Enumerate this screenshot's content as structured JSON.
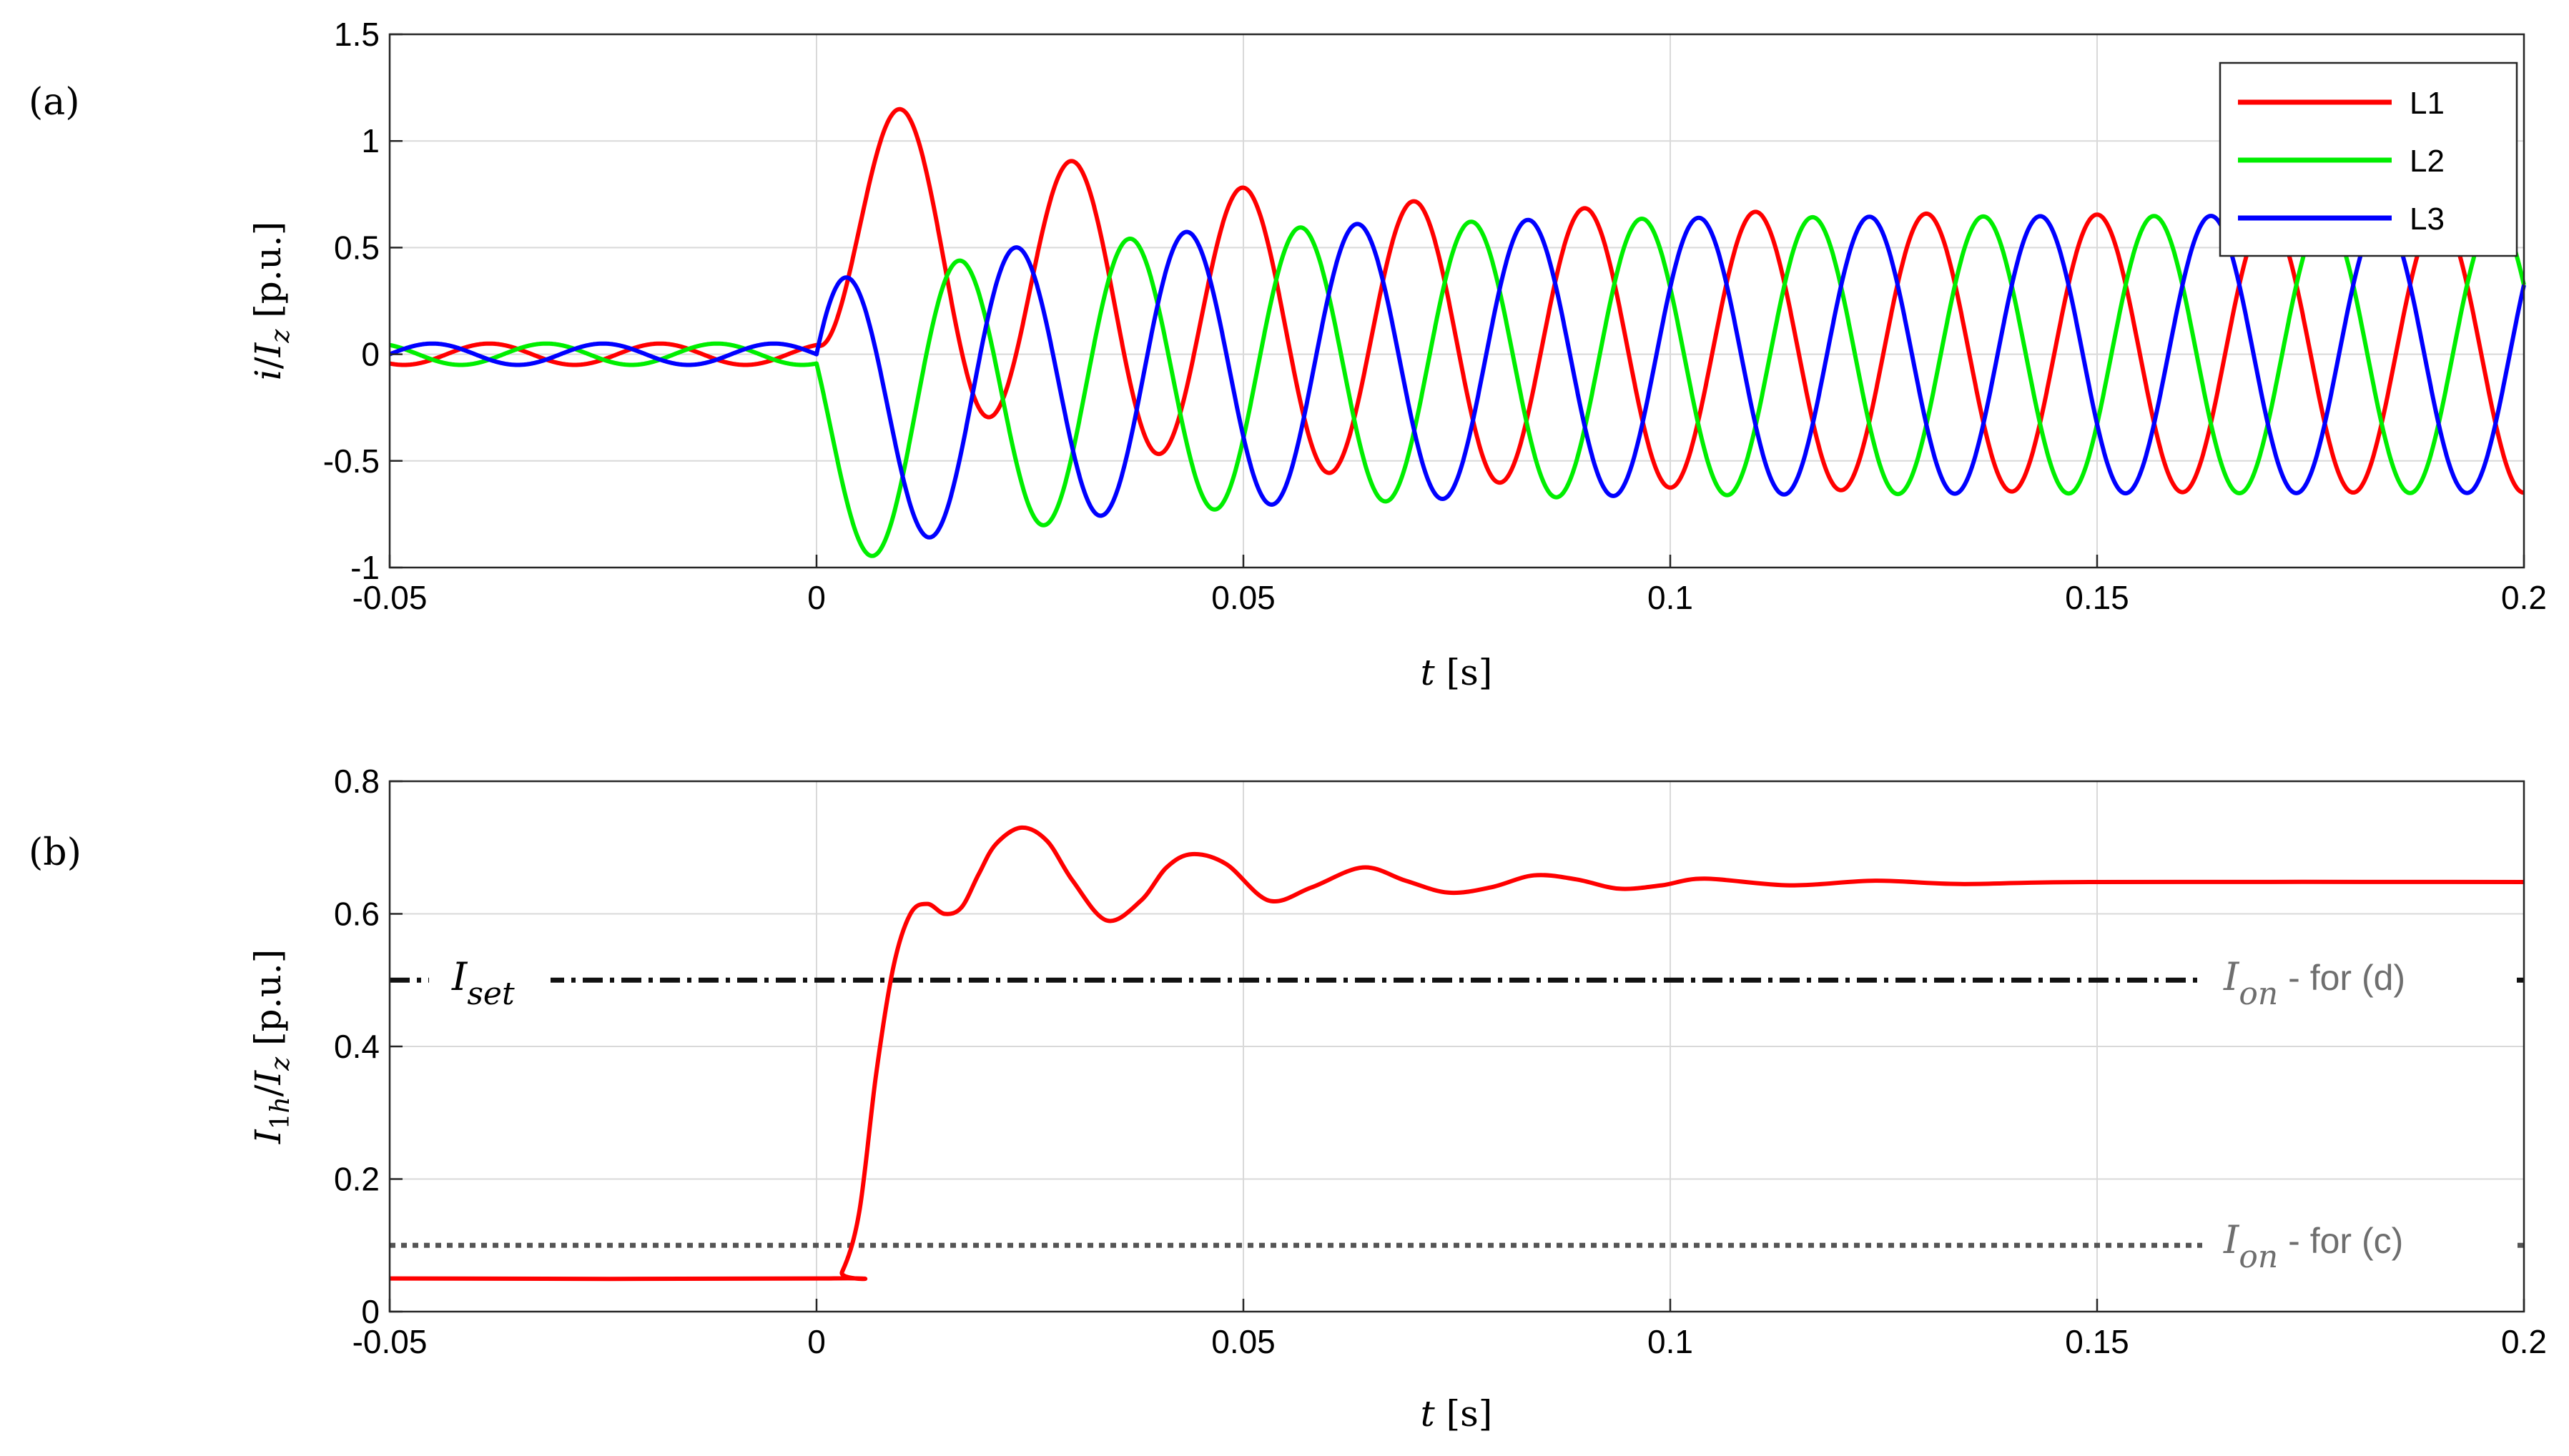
{
  "chart_data": [
    {
      "panel_label": "(a)",
      "type": "line",
      "xlim": [
        -0.05,
        0.2
      ],
      "ylim": [
        -1,
        1.5
      ],
      "x_ticks": [
        "-0.05",
        "0",
        "0.05",
        "0.1",
        "0.15",
        "0.2"
      ],
      "y_ticks": [
        "-1",
        "-0.5",
        "0",
        "0.5",
        "1",
        "1.5"
      ],
      "xlabel": "t [s]",
      "ylabel": "i/Iz [p.u.]",
      "grid": true,
      "legend_position": "top-right",
      "signal": {
        "frequency_hz": 50,
        "prefault_amplitude": 0.05,
        "steady_amplitude": 0.65,
        "dc_decay_time_constant_s": 0.03,
        "fault_time_s": 0
      },
      "series": [
        {
          "name": "L1",
          "color": "#ff0000",
          "phase_shift_deg": 0
        },
        {
          "name": "L2",
          "color": "#00ee00",
          "phase_shift_deg": -120
        },
        {
          "name": "L3",
          "color": "#0000ff",
          "phase_shift_deg": 120
        }
      ]
    },
    {
      "panel_label": "(b)",
      "type": "line",
      "xlim": [
        -0.05,
        0.2
      ],
      "ylim": [
        0,
        0.8
      ],
      "x_ticks": [
        "-0.05",
        "0",
        "0.05",
        "0.1",
        "0.15",
        "0.2"
      ],
      "y_ticks": [
        "0",
        "0.2",
        "0.4",
        "0.6",
        "0.8"
      ],
      "xlabel": "t [s]",
      "ylabel": "I1h/Iz [p.u.]",
      "grid": true,
      "series": [
        {
          "color": "#ff0000",
          "x": [
            -0.05,
            0.0015,
            0.003,
            0.005,
            0.007,
            0.009,
            0.011,
            0.013,
            0.015,
            0.017,
            0.019,
            0.021,
            0.024,
            0.027,
            0.03,
            0.034,
            0.038,
            0.041,
            0.044,
            0.048,
            0.053,
            0.058,
            0.064,
            0.069,
            0.074,
            0.079,
            0.084,
            0.089,
            0.094,
            0.099,
            0.104,
            0.114,
            0.124,
            0.134,
            0.15,
            0.2
          ],
          "y": [
            0.05,
            0.05,
            0.06,
            0.15,
            0.36,
            0.52,
            0.6,
            0.615,
            0.6,
            0.61,
            0.66,
            0.705,
            0.73,
            0.71,
            0.65,
            0.59,
            0.62,
            0.67,
            0.69,
            0.675,
            0.62,
            0.64,
            0.67,
            0.65,
            0.632,
            0.64,
            0.658,
            0.652,
            0.638,
            0.643,
            0.653,
            0.643,
            0.65,
            0.645,
            0.648,
            0.648
          ]
        }
      ],
      "reference_lines": [
        {
          "y": 0.5,
          "style": "dash-dot",
          "color": "#111111",
          "left_label": "Iset",
          "right_label": "Ion",
          "right_suffix": "- for (d)"
        },
        {
          "y": 0.1,
          "style": "dotted",
          "color": "#555555",
          "right_label": "Ion",
          "right_suffix": "- for (c)"
        }
      ]
    }
  ]
}
